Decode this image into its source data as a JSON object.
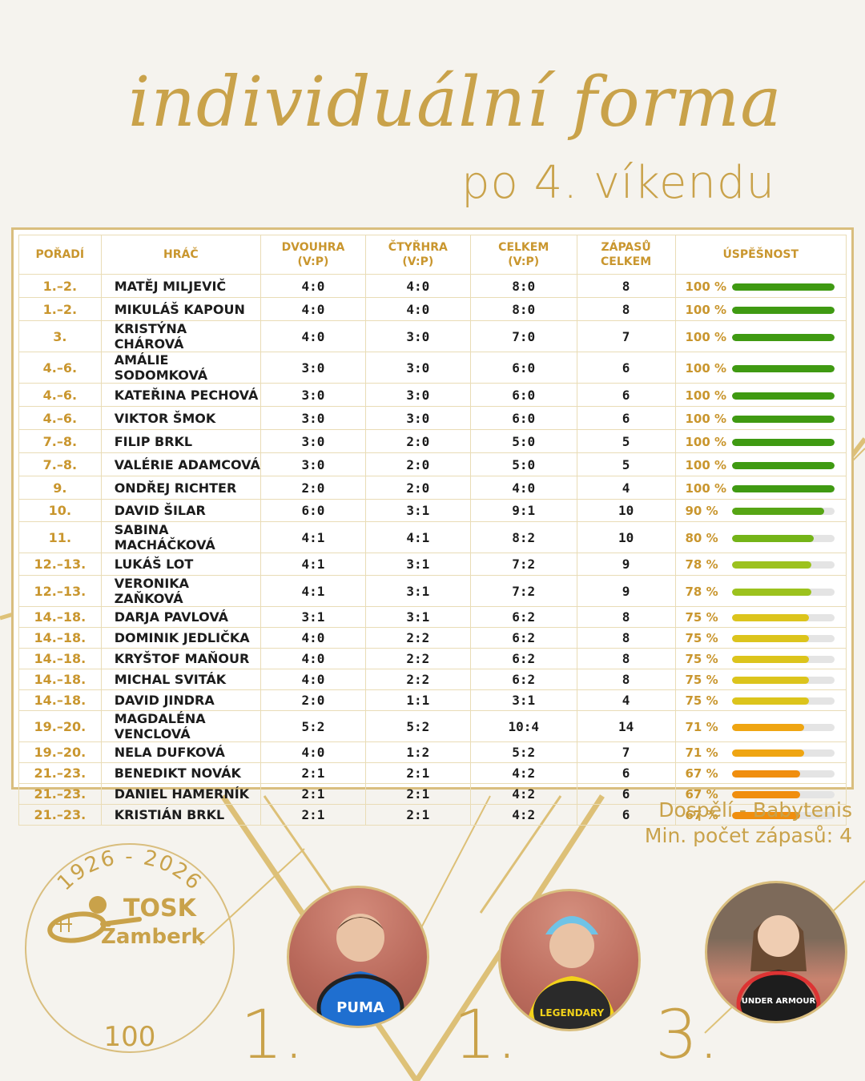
{
  "title": "individuální forma",
  "subtitle": "po 4. víkendu",
  "table": {
    "headers": {
      "rank": "POŘADÍ",
      "player": "HRÁČ",
      "singles": "DVOUHRA",
      "singles_sub": "(V:P)",
      "doubles": "ČTYŘHRA",
      "doubles_sub": "(V:P)",
      "total": "CELKEM",
      "total_sub": "(V:P)",
      "matches": "ZÁPASŮ",
      "matches_sub": "CELKEM",
      "success": "ÚSPĚŠNOST"
    },
    "rows": [
      {
        "rank": "1.–2.",
        "name": "MATĚJ MILJEVIČ",
        "singles": "4:0",
        "doubles": "4:0",
        "total": "8:0",
        "matches": "8",
        "pct": "100 %",
        "value": 1.0,
        "color": "#3f9a12"
      },
      {
        "rank": "1.–2.",
        "name": "MIKULÁŠ KAPOUN",
        "singles": "4:0",
        "doubles": "4:0",
        "total": "8:0",
        "matches": "8",
        "pct": "100 %",
        "value": 1.0,
        "color": "#3f9a12"
      },
      {
        "rank": "3.",
        "name": "KRISTÝNA CHÁROVÁ",
        "singles": "4:0",
        "doubles": "3:0",
        "total": "7:0",
        "matches": "7",
        "pct": "100 %",
        "value": 1.0,
        "color": "#3f9a12"
      },
      {
        "rank": "4.–6.",
        "name": "AMÁLIE SODOMKOVÁ",
        "singles": "3:0",
        "doubles": "3:0",
        "total": "6:0",
        "matches": "6",
        "pct": "100 %",
        "value": 1.0,
        "color": "#3f9a12"
      },
      {
        "rank": "4.–6.",
        "name": "KATEŘINA PECHOVÁ",
        "singles": "3:0",
        "doubles": "3:0",
        "total": "6:0",
        "matches": "6",
        "pct": "100 %",
        "value": 1.0,
        "color": "#3f9a12"
      },
      {
        "rank": "4.–6.",
        "name": "VIKTOR ŠMOK",
        "singles": "3:0",
        "doubles": "3:0",
        "total": "6:0",
        "matches": "6",
        "pct": "100 %",
        "value": 1.0,
        "color": "#3f9a12"
      },
      {
        "rank": "7.–8.",
        "name": "FILIP BRKL",
        "singles": "3:0",
        "doubles": "2:0",
        "total": "5:0",
        "matches": "5",
        "pct": "100 %",
        "value": 1.0,
        "color": "#3f9a12"
      },
      {
        "rank": "7.–8.",
        "name": "VALÉRIE ADAMCOVÁ",
        "singles": "3:0",
        "doubles": "2:0",
        "total": "5:0",
        "matches": "5",
        "pct": "100 %",
        "value": 1.0,
        "color": "#3f9a12"
      },
      {
        "rank": "9.",
        "name": "ONDŘEJ RICHTER",
        "singles": "2:0",
        "doubles": "2:0",
        "total": "4:0",
        "matches": "4",
        "pct": "100 %",
        "value": 1.0,
        "color": "#3f9a12"
      },
      {
        "rank": "10.",
        "name": "DAVID ŠILAR",
        "singles": "6:0",
        "doubles": "3:1",
        "total": "9:1",
        "matches": "10",
        "pct": "90 %",
        "value": 0.9,
        "color": "#56a515"
      },
      {
        "rank": "11.",
        "name": "SABINA MACHÁČKOVÁ",
        "singles": "4:1",
        "doubles": "4:1",
        "total": "8:2",
        "matches": "10",
        "pct": "80 %",
        "value": 0.8,
        "color": "#74b418"
      },
      {
        "rank": "12.–13.",
        "name": "LUKÁŠ LOT",
        "singles": "4:1",
        "doubles": "3:1",
        "total": "7:2",
        "matches": "9",
        "pct": "78 %",
        "value": 0.78,
        "color": "#9cc21e"
      },
      {
        "rank": "12.–13.",
        "name": "VERONIKA ZAŇKOVÁ",
        "singles": "4:1",
        "doubles": "3:1",
        "total": "7:2",
        "matches": "9",
        "pct": "78 %",
        "value": 0.78,
        "color": "#9cc21e"
      },
      {
        "rank": "14.–18.",
        "name": "DARJA PAVLOVÁ",
        "singles": "3:1",
        "doubles": "3:1",
        "total": "6:2",
        "matches": "8",
        "pct": "75 %",
        "value": 0.75,
        "color": "#dcc41c"
      },
      {
        "rank": "14.–18.",
        "name": "DOMINIK JEDLIČKA",
        "singles": "4:0",
        "doubles": "2:2",
        "total": "6:2",
        "matches": "8",
        "pct": "75 %",
        "value": 0.75,
        "color": "#dcc41c"
      },
      {
        "rank": "14.–18.",
        "name": "KRYŠTOF MAŇOUR",
        "singles": "4:0",
        "doubles": "2:2",
        "total": "6:2",
        "matches": "8",
        "pct": "75 %",
        "value": 0.75,
        "color": "#dcc41c"
      },
      {
        "rank": "14.–18.",
        "name": "MICHAL SVITÁK",
        "singles": "4:0",
        "doubles": "2:2",
        "total": "6:2",
        "matches": "8",
        "pct": "75 %",
        "value": 0.75,
        "color": "#dcc41c"
      },
      {
        "rank": "14.–18.",
        "name": "DAVID JINDRA",
        "singles": "2:0",
        "doubles": "1:1",
        "total": "3:1",
        "matches": "4",
        "pct": "75 %",
        "value": 0.75,
        "color": "#dcc41c"
      },
      {
        "rank": "19.–20.",
        "name": "MAGDALÉNA VENCLOVÁ",
        "singles": "5:2",
        "doubles": "5:2",
        "total": "10:4",
        "matches": "14",
        "pct": "71 %",
        "value": 0.71,
        "color": "#efa512"
      },
      {
        "rank": "19.–20.",
        "name": "NELA DUFKOVÁ",
        "singles": "4:0",
        "doubles": "1:2",
        "total": "5:2",
        "matches": "7",
        "pct": "71 %",
        "value": 0.71,
        "color": "#efa512"
      },
      {
        "rank": "21.–23.",
        "name": "BENEDIKT NOVÁK",
        "singles": "2:1",
        "doubles": "2:1",
        "total": "4:2",
        "matches": "6",
        "pct": "67 %",
        "value": 0.67,
        "color": "#f08e0e"
      },
      {
        "rank": "21.–23.",
        "name": "DANIEL HAMERNÍK",
        "singles": "2:1",
        "doubles": "2:1",
        "total": "4:2",
        "matches": "6",
        "pct": "67 %",
        "value": 0.67,
        "color": "#f08e0e"
      },
      {
        "rank": "21.–23.",
        "name": "KRISTIÁN BRKL",
        "singles": "2:1",
        "doubles": "2:1",
        "total": "4:2",
        "matches": "6",
        "pct": "67 %",
        "value": 0.67,
        "color": "#f08e0e"
      }
    ]
  },
  "note": {
    "line1": "Dospělí - Babytenis",
    "line2": "Min. počet zápasů: 4"
  },
  "logo": {
    "years": "1926 - 2026",
    "line1": "TOSK",
    "line2": "Žamberk",
    "anniversary": "100"
  },
  "podium": [
    {
      "place": "1.",
      "shirt_text": "PUMA"
    },
    {
      "place": "1.",
      "shirt_text": "LEGENDARY"
    },
    {
      "place": "3.",
      "shirt_text": "UNDER ARMOUR"
    }
  ],
  "colors": {
    "gold": "#c9a24a",
    "accent": "#c9962e"
  }
}
